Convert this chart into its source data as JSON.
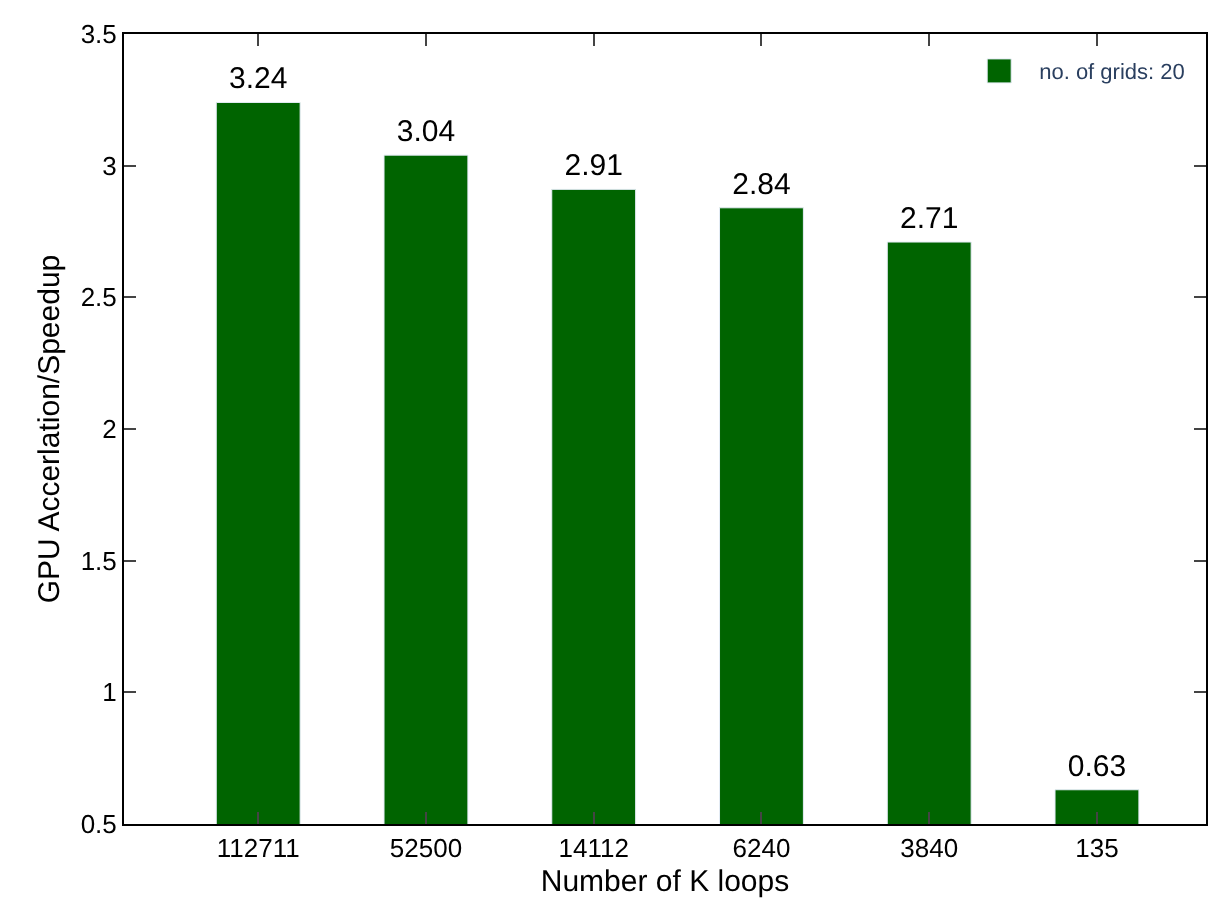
{
  "chart_data": {
    "type": "bar",
    "xlabel": "Number of K loops",
    "ylabel": "GPU Accerlation/Speedup",
    "categories": [
      "112711",
      "52500",
      "14112",
      "6240",
      "3840",
      "135"
    ],
    "series": [
      {
        "name": "no. of grids: 20",
        "color": "#006400",
        "values": [
          3.24,
          3.04,
          2.91,
          2.84,
          2.71,
          0.63
        ]
      }
    ],
    "ylim": [
      0.5,
      3.5
    ],
    "yticks": [
      0.5,
      1,
      1.5,
      2,
      2.5,
      3,
      3.5
    ],
    "data_labels": true,
    "legend": "top right"
  }
}
